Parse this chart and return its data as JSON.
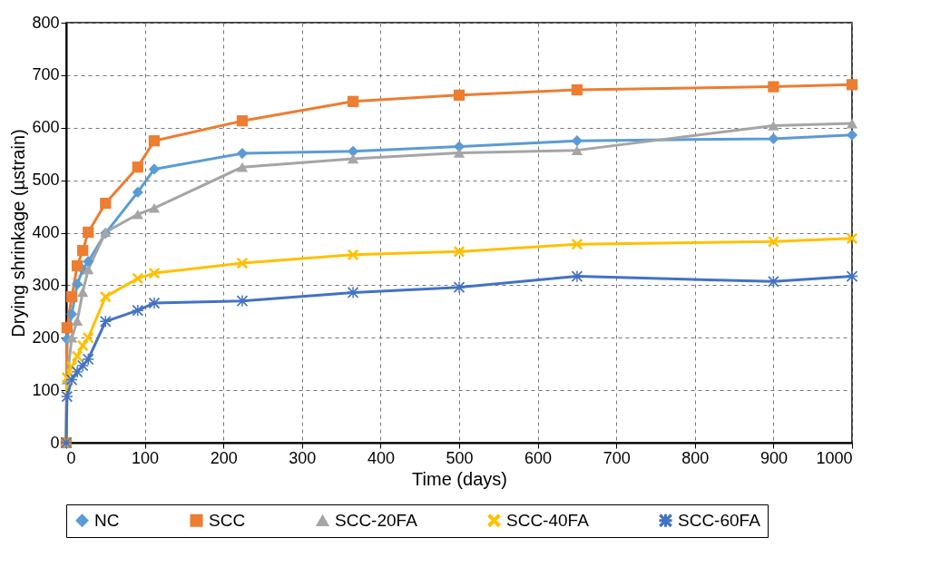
{
  "chart_data": {
    "type": "line",
    "xlabel": "Time (days)",
    "ylabel": "Drying shrinkage (µstrain)",
    "x": [
      0,
      1,
      7,
      14,
      21,
      28,
      50,
      91,
      112,
      224,
      365,
      500,
      650,
      900,
      1000
    ],
    "xlim": [
      0,
      1000
    ],
    "xticks": [
      0,
      100,
      200,
      300,
      400,
      500,
      600,
      700,
      800,
      900,
      1000
    ],
    "ylim": [
      0,
      800
    ],
    "yticks": [
      0,
      100,
      200,
      300,
      400,
      500,
      600,
      700,
      800
    ],
    "grid": true,
    "legend": "bottom",
    "line_style": "solid",
    "series": [
      {
        "name": "NC",
        "color": "#5b9bd5",
        "marker": "diamond",
        "values": [
          0,
          197,
          245,
          302,
          330,
          345,
          399,
          477,
          521,
          551,
          555,
          564,
          575,
          579,
          586
        ]
      },
      {
        "name": "SCC",
        "color": "#ed7d31",
        "marker": "square",
        "values": [
          0,
          219,
          278,
          337,
          366,
          401,
          456,
          525,
          575,
          613,
          650,
          662,
          672,
          678,
          682
        ]
      },
      {
        "name": "SCC-20FA",
        "color": "#a5a5a5",
        "marker": "triangle",
        "values": [
          0,
          120,
          200,
          232,
          287,
          330,
          401,
          435,
          447,
          525,
          541,
          552,
          557,
          604,
          608
        ]
      },
      {
        "name": "SCC-40FA",
        "color": "#ffc000",
        "marker": "cross",
        "values": [
          0,
          124,
          145,
          165,
          185,
          200,
          278,
          313,
          323,
          342,
          358,
          364,
          378,
          383,
          389
        ]
      },
      {
        "name": "SCC-60FA",
        "color": "#4472c4",
        "marker": "star",
        "values": [
          0,
          88,
          120,
          135,
          147,
          159,
          231,
          252,
          266,
          270,
          286,
          296,
          317,
          307,
          317
        ]
      }
    ]
  }
}
